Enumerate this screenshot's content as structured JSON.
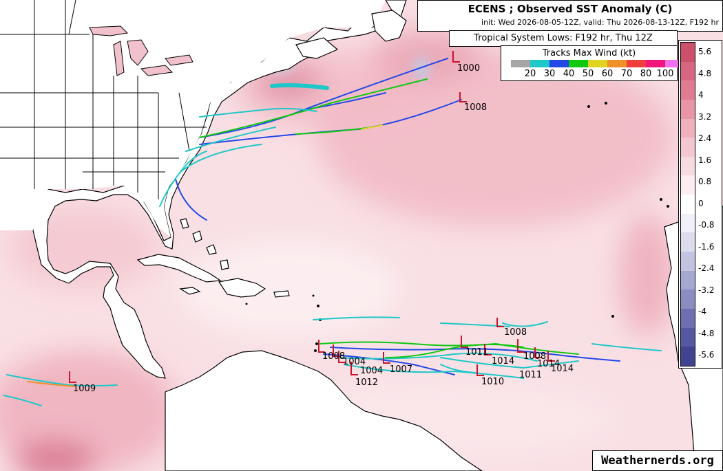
{
  "header": {
    "title": "ECENS ; Observed SST Anomaly (C)",
    "subtitle": "init: Wed 2026-08-05-12Z, valid: Thu 2026-08-13-12Z, F192 hr"
  },
  "lows_title": "Tropical System Lows: F192 hr, Thu 12Z",
  "wind_legend": {
    "title": "Tracks Max Wind (kt)",
    "labels": [
      "20",
      "30",
      "40",
      "50",
      "60",
      "70",
      "80",
      "100"
    ],
    "colors": [
      "#a6a6a6",
      "#1ec8c8",
      "#2448e8",
      "#10c810",
      "#e0d420",
      "#f09028",
      "#f03c3c",
      "#f0147c",
      "#f070f0"
    ]
  },
  "colorbar": {
    "labels": [
      "5.6",
      "4.8",
      "4",
      "3.2",
      "2.4",
      "1.6",
      "0.8",
      "0",
      "-0.8",
      "-1.6",
      "-2.4",
      "-3.2",
      "-4",
      "-4.8",
      "-5.6"
    ],
    "colors": [
      "#cc4f6b",
      "#d76680",
      "#e07c92",
      "#e896a7",
      "#efb0bd",
      "#f4c6cf",
      "#f8dbe0",
      "#fcedf0",
      "#ffffff",
      "#f0f0f8",
      "#dcdcee",
      "#c2c4e0",
      "#a6a8d2",
      "#8a8cc2",
      "#6e70b2",
      "#5658a2",
      "#414391"
    ]
  },
  "pressure_labels": [
    "1000",
    "1008",
    "1008",
    "1008",
    "1004",
    "1004",
    "1012",
    "1007",
    "1011",
    "1014",
    "1010",
    "1011",
    "1008",
    "1014",
    "1014",
    "1009"
  ],
  "credit": "Weathernerds.org"
}
